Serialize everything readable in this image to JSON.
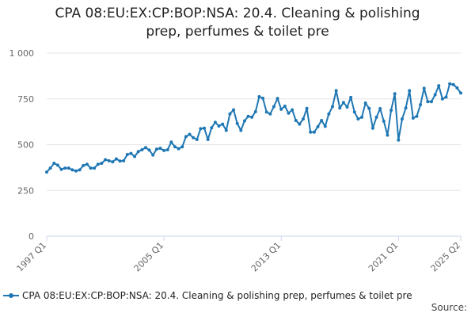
{
  "colors": {
    "series": "#1f77b4",
    "grid": "#e6e6e6",
    "axis": "#ccd6eb"
  },
  "title_lines": [
    "CPA 08:EU:EX:CP:BOP:NSA: 20.4. Cleaning & polishing",
    "prep, perfumes & toilet pre"
  ],
  "source_label": "Source:",
  "chart_data": {
    "type": "line",
    "title": "CPA 08:EU:EX:CP:BOP:NSA: 20.4. Cleaning & polishing prep, perfumes & toilet pre",
    "xlabel": "",
    "ylabel": "",
    "x_tick_labels": [
      "1997 Q1",
      "2005 Q1",
      "2013 Q1",
      "2021 Q1",
      "2025 Q2"
    ],
    "y_ticks": [
      0,
      250,
      500,
      750,
      1000
    ],
    "y_tick_labels": [
      "0",
      "250",
      "500",
      "750",
      "1 000"
    ],
    "ylim": [
      0,
      1000
    ],
    "grid": true,
    "legend_position": "bottom",
    "series": [
      {
        "name": "CPA 08:EU:EX:CP:BOP:NSA: 20.4. Cleaning & polishing prep, perfumes & toilet pre",
        "x": [
          "1997 Q1",
          "1997 Q2",
          "1997 Q3",
          "1997 Q4",
          "1998 Q1",
          "1998 Q2",
          "1998 Q3",
          "1998 Q4",
          "1999 Q1",
          "1999 Q2",
          "1999 Q3",
          "1999 Q4",
          "2000 Q1",
          "2000 Q2",
          "2000 Q3",
          "2000 Q4",
          "2001 Q1",
          "2001 Q2",
          "2001 Q3",
          "2001 Q4",
          "2002 Q1",
          "2002 Q2",
          "2002 Q3",
          "2002 Q4",
          "2003 Q1",
          "2003 Q2",
          "2003 Q3",
          "2003 Q4",
          "2004 Q1",
          "2004 Q2",
          "2004 Q3",
          "2004 Q4",
          "2005 Q1",
          "2005 Q2",
          "2005 Q3",
          "2005 Q4",
          "2006 Q1",
          "2006 Q2",
          "2006 Q3",
          "2006 Q4",
          "2007 Q1",
          "2007 Q2",
          "2007 Q3",
          "2007 Q4",
          "2008 Q1",
          "2008 Q2",
          "2008 Q3",
          "2008 Q4",
          "2009 Q1",
          "2009 Q2",
          "2009 Q3",
          "2009 Q4",
          "2010 Q1",
          "2010 Q2",
          "2010 Q3",
          "2010 Q4",
          "2011 Q1",
          "2011 Q2",
          "2011 Q3",
          "2011 Q4",
          "2012 Q1",
          "2012 Q2",
          "2012 Q3",
          "2012 Q4",
          "2013 Q1",
          "2013 Q2",
          "2013 Q3",
          "2013 Q4",
          "2014 Q1",
          "2014 Q2",
          "2014 Q3",
          "2014 Q4",
          "2015 Q1",
          "2015 Q2",
          "2015 Q3",
          "2015 Q4",
          "2016 Q1",
          "2016 Q2",
          "2016 Q3",
          "2016 Q4",
          "2017 Q1",
          "2017 Q2",
          "2017 Q3",
          "2017 Q4",
          "2018 Q1",
          "2018 Q2",
          "2018 Q3",
          "2018 Q4",
          "2019 Q1",
          "2019 Q2",
          "2019 Q3",
          "2019 Q4",
          "2020 Q1",
          "2020 Q2",
          "2020 Q3",
          "2020 Q4",
          "2021 Q1",
          "2021 Q2",
          "2021 Q3",
          "2021 Q4",
          "2022 Q1",
          "2022 Q2",
          "2022 Q3",
          "2022 Q4",
          "2023 Q1",
          "2023 Q2",
          "2023 Q3",
          "2023 Q4",
          "2024 Q1",
          "2024 Q2",
          "2024 Q3",
          "2024 Q4",
          "2025 Q1",
          "2025 Q2"
        ],
        "values": [
          350,
          372,
          398,
          388,
          365,
          372,
          372,
          362,
          356,
          362,
          386,
          393,
          372,
          372,
          393,
          398,
          418,
          412,
          406,
          422,
          410,
          412,
          446,
          452,
          435,
          462,
          472,
          484,
          470,
          443,
          475,
          480,
          468,
          472,
          514,
          488,
          478,
          488,
          544,
          556,
          538,
          528,
          587,
          590,
          528,
          592,
          622,
          602,
          612,
          578,
          668,
          690,
          616,
          578,
          630,
          655,
          650,
          680,
          762,
          753,
          678,
          668,
          708,
          752,
          693,
          710,
          672,
          690,
          632,
          612,
          640,
          698,
          568,
          568,
          598,
          632,
          600,
          668,
          708,
          795,
          700,
          730,
          705,
          758,
          678,
          640,
          650,
          727,
          698,
          590,
          650,
          697,
          628,
          552,
          688,
          778,
          525,
          640,
          700,
          795,
          645,
          655,
          718,
          808,
          735,
          735,
          772,
          822,
          750,
          760,
          832,
          828,
          810,
          782
        ]
      }
    ]
  }
}
